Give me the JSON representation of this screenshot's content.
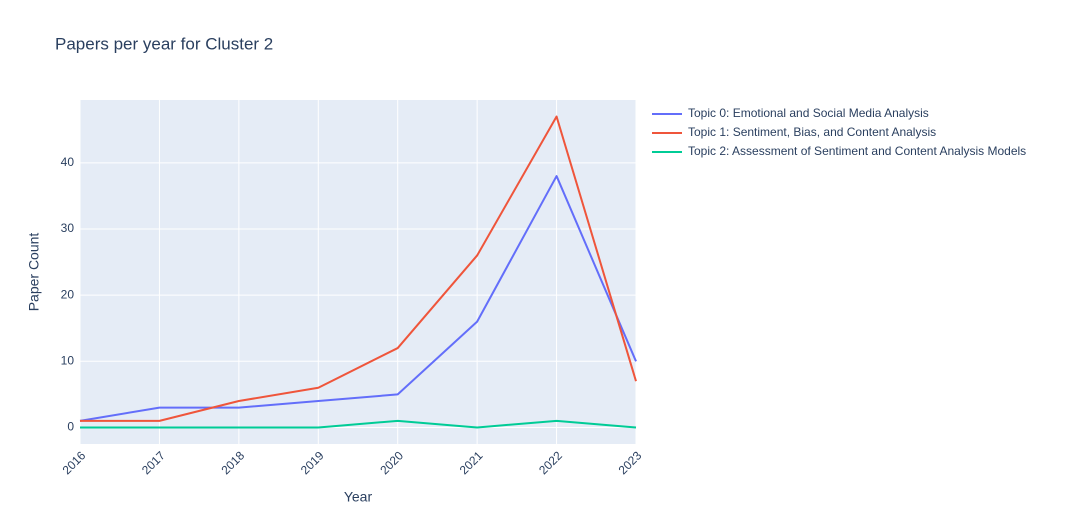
{
  "chart_data": {
    "type": "line",
    "title": "Papers per year for Cluster 2",
    "x_label": "Year",
    "y_label": "Paper Count",
    "x": [
      2016,
      2017,
      2018,
      2019,
      2020,
      2021,
      2022,
      2023
    ],
    "xlim": [
      2016,
      2023
    ],
    "xticks": [
      2016,
      2017,
      2018,
      2019,
      2020,
      2021,
      2022,
      2023
    ],
    "ylim": [
      -2.5,
      49.5
    ],
    "yticks": [
      0,
      10,
      20,
      30,
      40
    ],
    "grid": true,
    "series": [
      {
        "name": "Topic 0: Emotional and Social Media Analysis",
        "color": "#636efa",
        "values": [
          1,
          3,
          3,
          4,
          5,
          16,
          38,
          10
        ]
      },
      {
        "name": "Topic 1: Sentiment, Bias, and Content Analysis",
        "color": "#ef553b",
        "values": [
          1,
          1,
          4,
          6,
          12,
          26,
          47,
          7
        ]
      },
      {
        "name": "Topic 2: Assessment of Sentiment and Content Analysis Models",
        "color": "#00cc96",
        "values": [
          0,
          0,
          0,
          0,
          1,
          0,
          1,
          0
        ]
      }
    ]
  }
}
